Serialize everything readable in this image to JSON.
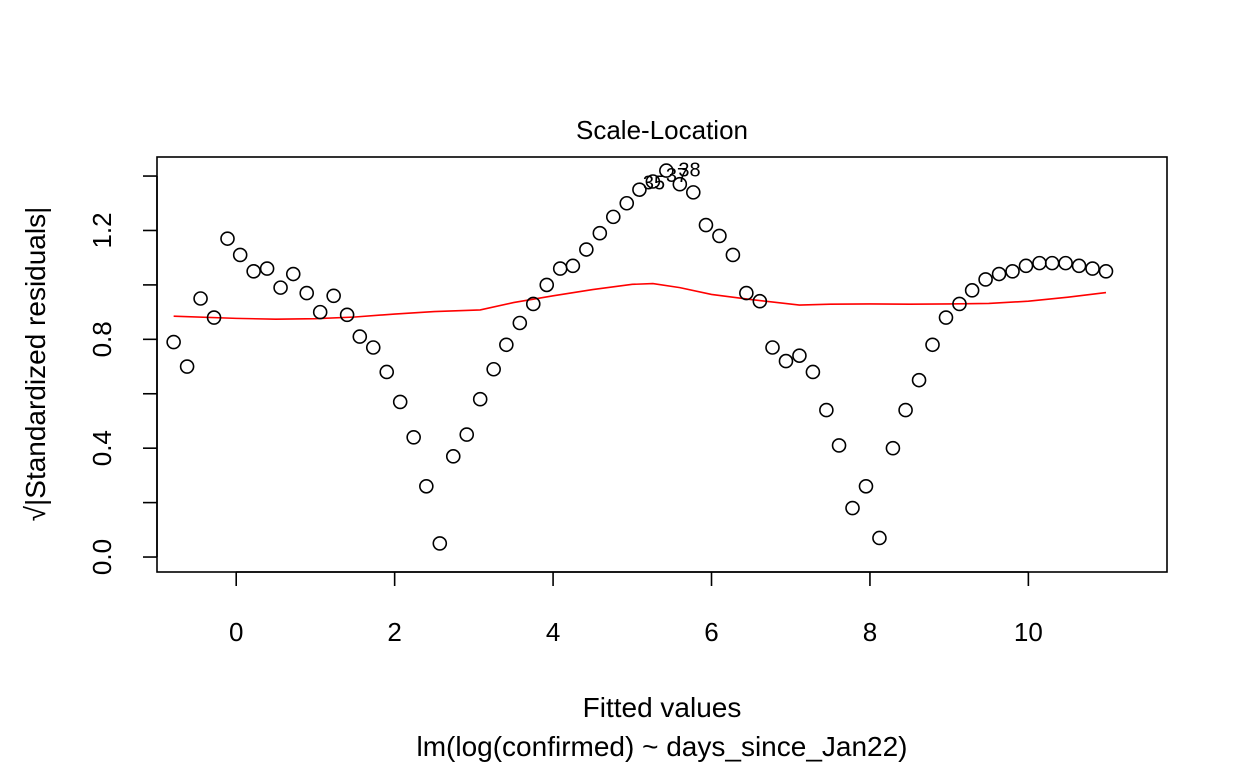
{
  "chart_data": {
    "type": "scatter",
    "title": "Scale-Location",
    "xlabel": "Fitted values",
    "ylabel": "√|Standardized residuals|",
    "subtitle": "lm(log(confirmed) ~ days_since_Jan22)",
    "xlim": [
      -1.0,
      11.75
    ],
    "ylim": [
      -0.055,
      1.47
    ],
    "x_ticks": [
      0,
      2,
      4,
      6,
      8,
      10
    ],
    "x_tick_labels": [
      "0",
      "2",
      "4",
      "6",
      "8",
      "10"
    ],
    "y_ticks": [
      0.0,
      0.2,
      0.4,
      0.6,
      0.8,
      1.0,
      1.2,
      1.4
    ],
    "y_tick_labels": [
      "0.0",
      "",
      "0.4",
      "",
      "0.8",
      "",
      "1.2",
      ""
    ],
    "grid": false,
    "legend": "none",
    "points": [
      [
        -0.79,
        0.79
      ],
      [
        -0.62,
        0.7
      ],
      [
        -0.45,
        0.95
      ],
      [
        -0.28,
        0.88
      ],
      [
        -0.11,
        1.17
      ],
      [
        0.05,
        1.11
      ],
      [
        0.22,
        1.05
      ],
      [
        0.39,
        1.06
      ],
      [
        0.56,
        0.99
      ],
      [
        0.72,
        1.04
      ],
      [
        0.89,
        0.97
      ],
      [
        1.06,
        0.9
      ],
      [
        1.23,
        0.96
      ],
      [
        1.4,
        0.89
      ],
      [
        1.56,
        0.81
      ],
      [
        1.73,
        0.77
      ],
      [
        1.9,
        0.68
      ],
      [
        2.07,
        0.57
      ],
      [
        2.24,
        0.44
      ],
      [
        2.4,
        0.26
      ],
      [
        2.57,
        0.05
      ],
      [
        2.74,
        0.37
      ],
      [
        2.91,
        0.45
      ],
      [
        3.08,
        0.58
      ],
      [
        3.25,
        0.69
      ],
      [
        3.41,
        0.78
      ],
      [
        3.58,
        0.86
      ],
      [
        3.75,
        0.93
      ],
      [
        3.92,
        1.0
      ],
      [
        4.09,
        1.06
      ],
      [
        4.25,
        1.07
      ],
      [
        4.42,
        1.13
      ],
      [
        4.59,
        1.19
      ],
      [
        4.76,
        1.25
      ],
      [
        4.93,
        1.3
      ],
      [
        5.09,
        1.35
      ],
      [
        5.26,
        1.38
      ],
      [
        5.43,
        1.42
      ],
      [
        5.6,
        1.37
      ],
      [
        5.77,
        1.34
      ],
      [
        5.93,
        1.22
      ],
      [
        6.1,
        1.18
      ],
      [
        6.27,
        1.11
      ],
      [
        6.44,
        0.97
      ],
      [
        6.61,
        0.94
      ],
      [
        6.77,
        0.77
      ],
      [
        6.94,
        0.72
      ],
      [
        7.11,
        0.74
      ],
      [
        7.28,
        0.68
      ],
      [
        7.45,
        0.54
      ],
      [
        7.61,
        0.41
      ],
      [
        7.78,
        0.18
      ],
      [
        7.95,
        0.26
      ],
      [
        8.12,
        0.07
      ],
      [
        8.29,
        0.4
      ],
      [
        8.45,
        0.54
      ],
      [
        8.62,
        0.65
      ],
      [
        8.79,
        0.78
      ],
      [
        8.96,
        0.88
      ],
      [
        9.13,
        0.93
      ],
      [
        9.29,
        0.98
      ],
      [
        9.46,
        1.02
      ],
      [
        9.63,
        1.04
      ],
      [
        9.8,
        1.05
      ],
      [
        9.97,
        1.07
      ],
      [
        10.14,
        1.08
      ],
      [
        10.3,
        1.08
      ],
      [
        10.47,
        1.08
      ],
      [
        10.64,
        1.07
      ],
      [
        10.81,
        1.06
      ],
      [
        10.98,
        1.05
      ]
    ],
    "smoother": {
      "color": "#ff0000",
      "x": [
        -0.79,
        0.0,
        0.5,
        1.0,
        1.5,
        2.0,
        2.5,
        3.08,
        3.5,
        4.0,
        4.5,
        5.0,
        5.26,
        5.6,
        6.0,
        6.5,
        7.11,
        7.5,
        8.0,
        8.5,
        9.0,
        9.5,
        10.0,
        10.5,
        10.98
      ],
      "y": [
        0.885,
        0.877,
        0.874,
        0.876,
        0.882,
        0.893,
        0.902,
        0.908,
        0.935,
        0.96,
        0.983,
        1.002,
        1.005,
        0.99,
        0.965,
        0.946,
        0.926,
        0.929,
        0.93,
        0.929,
        0.93,
        0.932,
        0.94,
        0.955,
        0.972
      ]
    },
    "annotations": [
      {
        "label": "38",
        "x": 5.43,
        "y": 1.42,
        "dx": 12,
        "dy": 6
      },
      {
        "label": "35",
        "x": 5.26,
        "y": 1.38,
        "dx": -10,
        "dy": 8
      },
      {
        "label": "37",
        "x": 5.6,
        "y": 1.37,
        "dx": -14,
        "dy": -2
      }
    ]
  }
}
